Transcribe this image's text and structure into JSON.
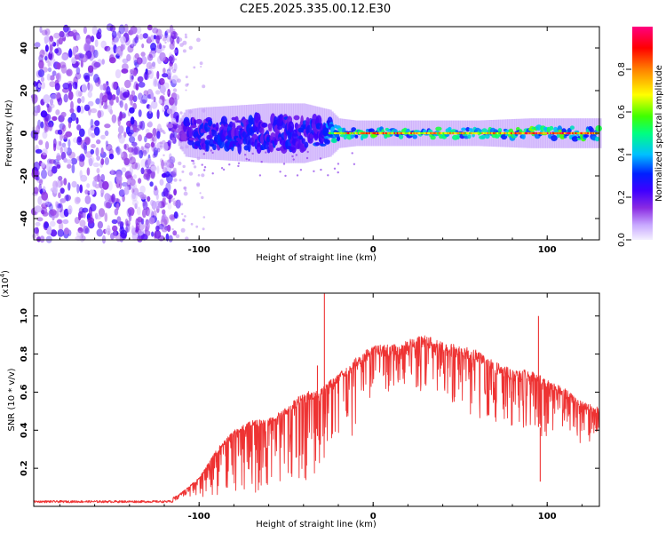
{
  "title": "C2E5.2025.335.00.12.E30",
  "chart_data": [
    {
      "type": "heatmap",
      "name": "spectrogram",
      "xlabel": "Height of straight line (km)",
      "ylabel": "Frequency (Hz)",
      "xlim": [
        -195,
        130
      ],
      "ylim": [
        -50,
        50
      ],
      "xticks": [
        -100,
        0,
        100
      ],
      "yticks": [
        -40,
        -20,
        0,
        20,
        40
      ],
      "colorbar": {
        "label": "Normalized spectral amplitude",
        "range": [
          0,
          1
        ],
        "ticks": [
          0.0,
          0.2,
          0.4,
          0.6,
          0.8
        ],
        "colormap": [
          "#f4f0ff",
          "#c8a8ff",
          "#8a2be2",
          "#3f00ff",
          "#0020ff",
          "#00c0ff",
          "#00ff80",
          "#40ff00",
          "#ffff00",
          "#ff8000",
          "#ff0000",
          "#ff0080"
        ]
      },
      "noise_region": {
        "x": [
          -195,
          -112
        ],
        "amplitude": 0.25
      },
      "band_profile": [
        {
          "x": -112,
          "half_width": 3,
          "amplitude": 0.2
        },
        {
          "x": -108,
          "half_width": 8,
          "amplitude": 0.45
        },
        {
          "x": -100,
          "half_width": 9,
          "amplitude": 0.5
        },
        {
          "x": -80,
          "half_width": 10,
          "amplitude": 0.52
        },
        {
          "x": -60,
          "half_width": 11,
          "amplitude": 0.5
        },
        {
          "x": -40,
          "half_width": 11,
          "amplitude": 0.52
        },
        {
          "x": -25,
          "half_width": 8,
          "amplitude": 0.6
        },
        {
          "x": -20,
          "half_width": 4,
          "amplitude": 0.85
        },
        {
          "x": -10,
          "half_width": 3,
          "amplitude": 0.8
        },
        {
          "x": 0,
          "half_width": 3,
          "amplitude": 0.88
        },
        {
          "x": 20,
          "half_width": 3,
          "amplitude": 0.85
        },
        {
          "x": 60,
          "half_width": 3,
          "amplitude": 0.75
        },
        {
          "x": 90,
          "half_width": 4,
          "amplitude": 0.9
        },
        {
          "x": 110,
          "half_width": 4,
          "amplitude": 0.92
        },
        {
          "x": 130,
          "half_width": 4,
          "amplitude": 0.85
        }
      ]
    },
    {
      "type": "line",
      "name": "snr",
      "xlabel": "Height of straight line (km)",
      "ylabel": "SNR (10 * v/v)",
      "y_multiplier": "(x10",
      "y_multiplier_exp": "4",
      "y_multiplier_close": ")",
      "xlim": [
        -195,
        130
      ],
      "ylim": [
        0,
        1.12
      ],
      "xticks": [
        -100,
        0,
        100
      ],
      "yticks": [
        0.2,
        0.4,
        0.6,
        0.8,
        1.0
      ],
      "color": "#ee3333",
      "envelope_x": [
        -195,
        -120,
        -112,
        -100,
        -90,
        -80,
        -70,
        -60,
        -50,
        -40,
        -30,
        -20,
        -10,
        0,
        10,
        20,
        30,
        40,
        50,
        60,
        70,
        80,
        90,
        100,
        110,
        120,
        130
      ],
      "envelope_upper": [
        0.03,
        0.03,
        0.06,
        0.15,
        0.3,
        0.4,
        0.45,
        0.46,
        0.52,
        0.6,
        0.62,
        0.7,
        0.78,
        0.85,
        0.85,
        0.88,
        0.9,
        0.86,
        0.85,
        0.82,
        0.76,
        0.72,
        0.72,
        0.67,
        0.62,
        0.55,
        0.52
      ],
      "envelope_lower": [
        0.02,
        0.02,
        0.02,
        0.03,
        0.04,
        0.05,
        0.06,
        0.08,
        0.1,
        0.13,
        0.18,
        0.25,
        0.4,
        0.55,
        0.6,
        0.62,
        0.6,
        0.55,
        0.5,
        0.45,
        0.42,
        0.4,
        0.38,
        0.36,
        0.35,
        0.33,
        0.32
      ],
      "spikes": [
        {
          "x": -28,
          "y": 1.12
        },
        {
          "x": -32,
          "y": 0.74
        },
        {
          "x": 95,
          "y": 1.0
        },
        {
          "x": 96,
          "y": 0.13
        }
      ]
    }
  ]
}
